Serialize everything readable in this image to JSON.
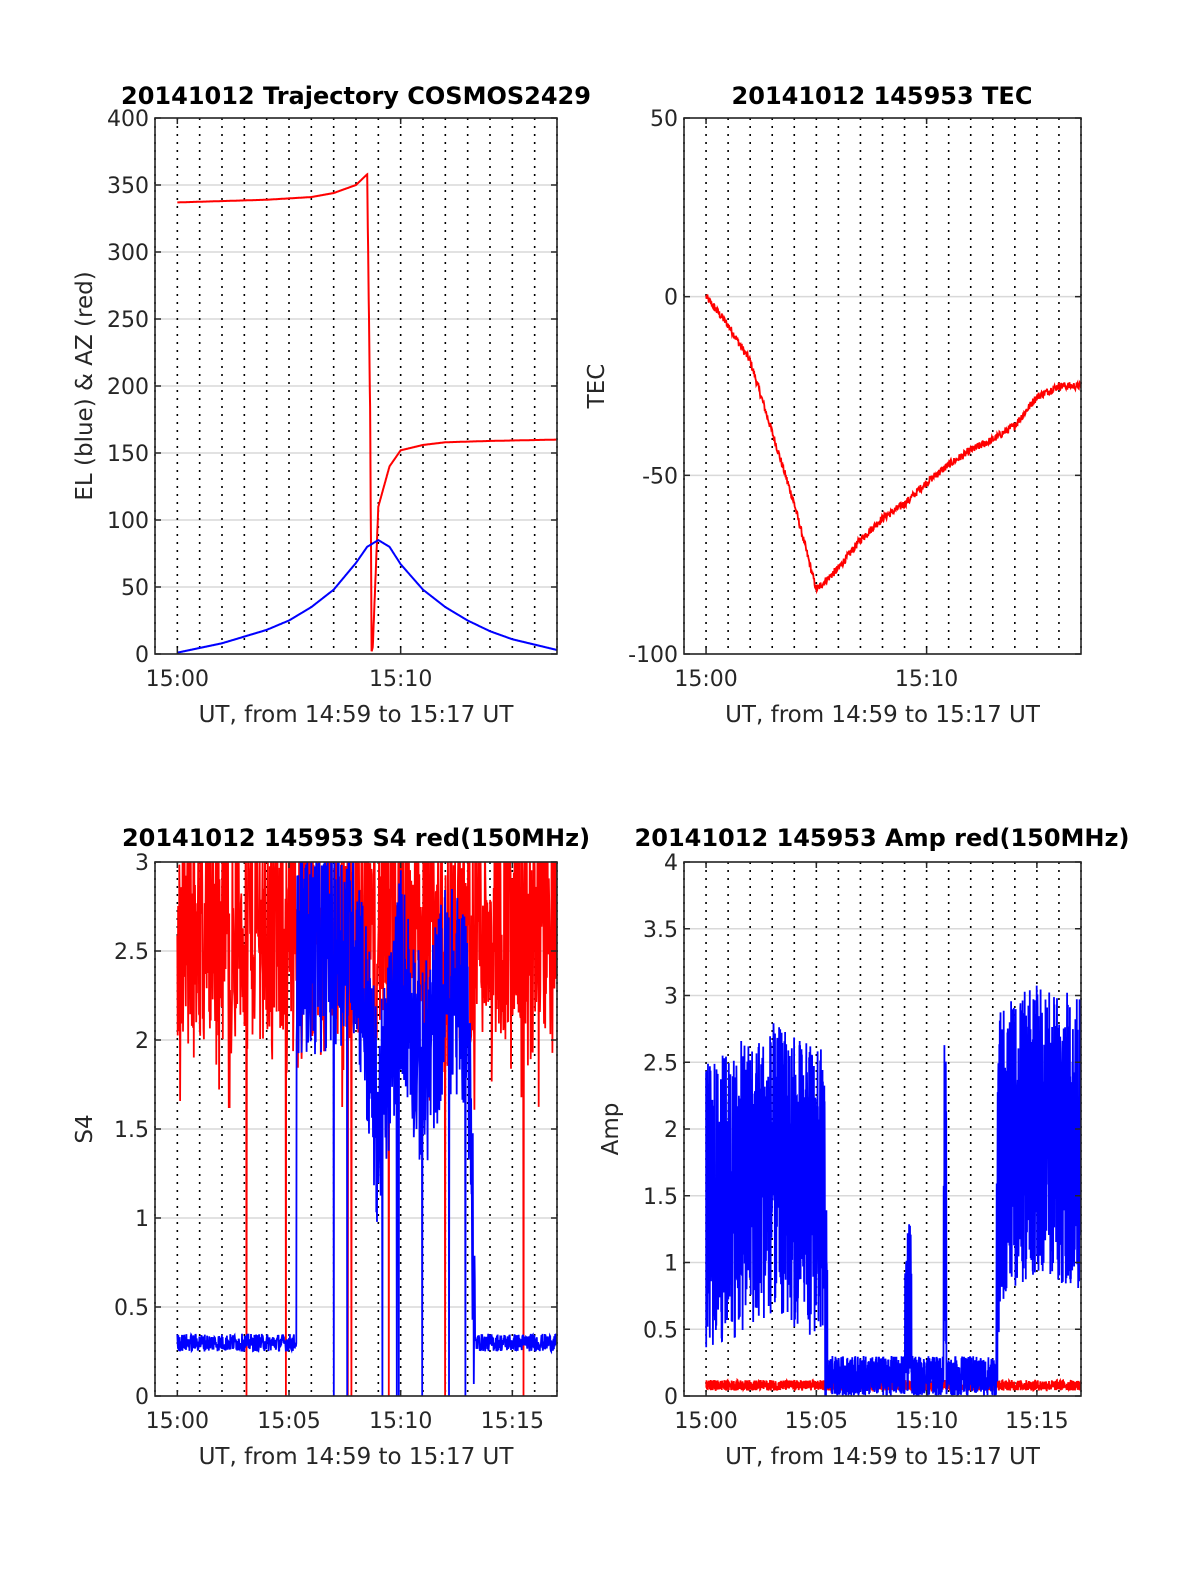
{
  "figure": {
    "colors": {
      "blue": "#0000ff",
      "red": "#ff0000",
      "axis": "#262626",
      "grid_solid": "#d9d9d9",
      "grid_dotted": "#000000"
    }
  },
  "chart_data": [
    {
      "id": "trajectory",
      "type": "line",
      "title": "20141012 Trajectory COSMOS2429",
      "xlabel": "UT, from 14:59 to 15:17 UT",
      "ylabel": "EL (blue) & AZ (red)",
      "xlim": [
        "14:59",
        "15:17"
      ],
      "ylim": [
        0,
        400
      ],
      "xticks": [
        "15:00",
        "15:10"
      ],
      "yticks": [
        0,
        50,
        100,
        150,
        200,
        250,
        300,
        350,
        400
      ],
      "ytick_labels": [
        "0",
        "50",
        "100",
        "150",
        "200",
        "250",
        "300",
        "350",
        "400"
      ],
      "grid": "horizontal solid; vertical dotted every minute",
      "series": [
        {
          "color": "#ff0000",
          "x": [
            "15:00",
            "15:02",
            "15:04",
            "15:06",
            "15:07",
            "15:08",
            "15:08:30",
            "15:08:38",
            "15:08:42",
            "15:08:45",
            "15:08:50",
            "15:09",
            "15:09:30",
            "15:10",
            "15:11",
            "15:12",
            "15:14",
            "15:17"
          ],
          "values": [
            337,
            338,
            339,
            341,
            344,
            350,
            358,
            180,
            2,
            5,
            40,
            110,
            140,
            152,
            156,
            158,
            159,
            160
          ]
        },
        {
          "color": "#0000ff",
          "x": [
            "15:00",
            "15:02",
            "15:04",
            "15:05",
            "15:06",
            "15:07",
            "15:08",
            "15:08:30",
            "15:09",
            "15:09:30",
            "15:10",
            "15:11",
            "15:12",
            "15:13",
            "15:14",
            "15:15",
            "15:17"
          ],
          "values": [
            1,
            8,
            18,
            25,
            35,
            48,
            68,
            80,
            85,
            80,
            67,
            48,
            35,
            25,
            17,
            11,
            3
          ]
        }
      ]
    },
    {
      "id": "tec",
      "type": "line",
      "title": "20141012 145953 TEC",
      "xlabel": "UT, from 14:59 to 15:17 UT",
      "ylabel": "TEC",
      "xlim": [
        "14:59",
        "15:17"
      ],
      "ylim": [
        -100,
        50
      ],
      "xticks": [
        "15:00",
        "15:10"
      ],
      "yticks": [
        -100,
        -50,
        0,
        50
      ],
      "ytick_labels": [
        "-100",
        "-50",
        "0",
        "50"
      ],
      "grid": "horizontal solid; vertical dotted every minute",
      "series": [
        {
          "color": "#ff0000",
          "x": [
            "15:00",
            "15:01",
            "15:02",
            "15:03",
            "15:04",
            "15:04:30",
            "15:05",
            "15:06",
            "15:07",
            "15:08",
            "15:09",
            "15:10",
            "15:11",
            "15:12",
            "15:13",
            "15:14",
            "15:15",
            "15:16",
            "15:17"
          ],
          "values": [
            0,
            -8,
            -18,
            -38,
            -58,
            -70,
            -82,
            -76,
            -68,
            -62,
            -58,
            -52,
            -47,
            -43,
            -40,
            -36,
            -28,
            -25,
            -25
          ]
        }
      ]
    },
    {
      "id": "s4",
      "type": "line",
      "title": "20141012 145953 S4 red(150MHz)",
      "xlabel": "UT, from 14:59 to 15:17 UT",
      "ylabel": "S4",
      "xlim": [
        "14:59",
        "15:17"
      ],
      "ylim": [
        0,
        3
      ],
      "xticks": [
        "15:00",
        "15:05",
        "15:10",
        "15:15"
      ],
      "yticks": [
        0,
        0.5,
        1,
        1.5,
        2,
        2.5,
        3
      ],
      "ytick_labels": [
        "0",
        "0.5",
        "1",
        "1.5",
        "2",
        "2.5",
        "3"
      ],
      "grid": "horizontal solid; vertical dotted every minute",
      "series": [
        {
          "color": "#ff0000",
          "description_values": "noisy 1.6–3.0 throughout",
          "x": [
            "15:00",
            "15:05",
            "15:10",
            "15:13",
            "15:17"
          ],
          "values": [
            2.3,
            2.4,
            2.5,
            2.6,
            2.5
          ]
        },
        {
          "color": "#0000ff",
          "x": [
            "15:00",
            "15:04",
            "15:05",
            "15:05:20",
            "15:06",
            "15:08",
            "15:09",
            "15:10",
            "15:11",
            "15:12",
            "15:13",
            "15:13:20",
            "15:15",
            "15:17"
          ],
          "values": [
            0.32,
            0.33,
            0.35,
            2.5,
            2.5,
            2.6,
            1.5,
            2.4,
            1.8,
            2.3,
            2.2,
            0.3,
            0.28,
            0.3
          ]
        }
      ]
    },
    {
      "id": "amp",
      "type": "line",
      "title": "20141012 145953 Amp red(150MHz)",
      "xlabel": "UT, from 14:59 to 15:17 UT",
      "ylabel": "Amp",
      "xlim": [
        "14:59",
        "15:17"
      ],
      "ylim": [
        0,
        4
      ],
      "xticks": [
        "15:00",
        "15:05",
        "15:10",
        "15:15"
      ],
      "yticks": [
        0,
        0.5,
        1,
        1.5,
        2,
        2.5,
        3,
        3.5,
        4
      ],
      "ytick_labels": [
        "0",
        "0.5",
        "1",
        "1.5",
        "2",
        "2.5",
        "3",
        "3.5",
        "4"
      ],
      "grid": "horizontal solid; vertical dotted every minute",
      "series": [
        {
          "color": "#ff0000",
          "x": [
            "15:00",
            "15:17"
          ],
          "values": [
            0.08,
            0.08
          ]
        },
        {
          "color": "#0000ff",
          "x": [
            "15:00",
            "15:03",
            "15:05:20",
            "15:05:30",
            "15:09",
            "15:10:30",
            "15:13",
            "15:13:20",
            "15:15",
            "15:17"
          ],
          "values": [
            1.4,
            1.7,
            1.5,
            0.1,
            0.5,
            0.4,
            0.1,
            1.8,
            2.0,
            1.9
          ]
        }
      ]
    }
  ]
}
